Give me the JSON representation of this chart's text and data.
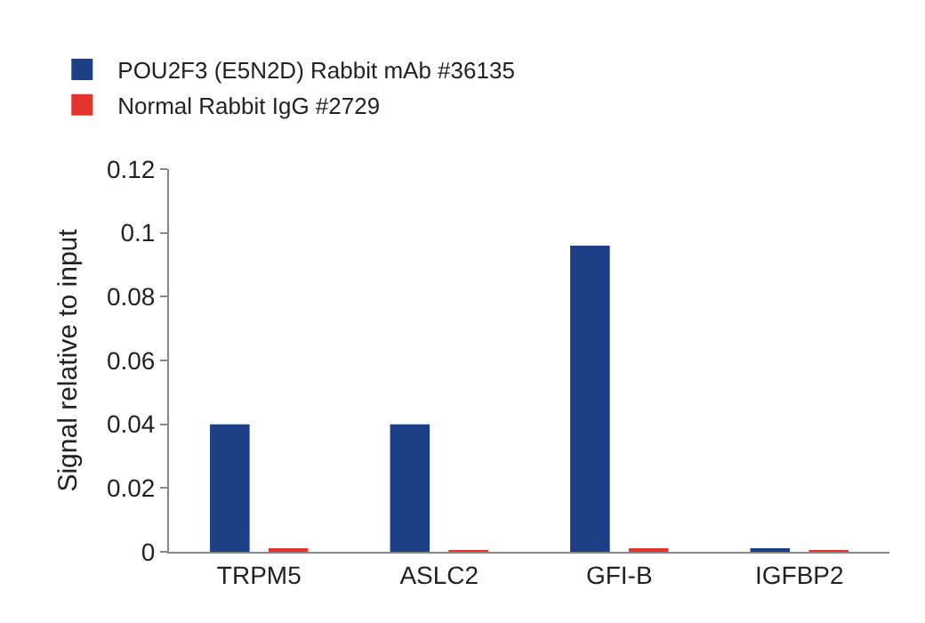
{
  "chart_data": {
    "type": "bar",
    "ylabel": "Signal relative to input",
    "categories": [
      "TRPM5",
      "ASLC2",
      "GFI-B",
      "IGFBP2"
    ],
    "series": [
      {
        "name": "POU2F3 (E5N2D) Rabbit mAb #36135",
        "color": "#1c3f86",
        "values": [
          0.04,
          0.04,
          0.096,
          0.001
        ]
      },
      {
        "name": "Normal Rabbit IgG #2729",
        "color": "#e3332b",
        "values": [
          0.0006,
          0.0004,
          0.001,
          0.0002
        ]
      }
    ],
    "ylim": [
      0,
      0.12
    ],
    "yticks": [
      0,
      0.02,
      0.04,
      0.06,
      0.08,
      0.1,
      0.12
    ],
    "grid": false,
    "legend": "top left"
  }
}
